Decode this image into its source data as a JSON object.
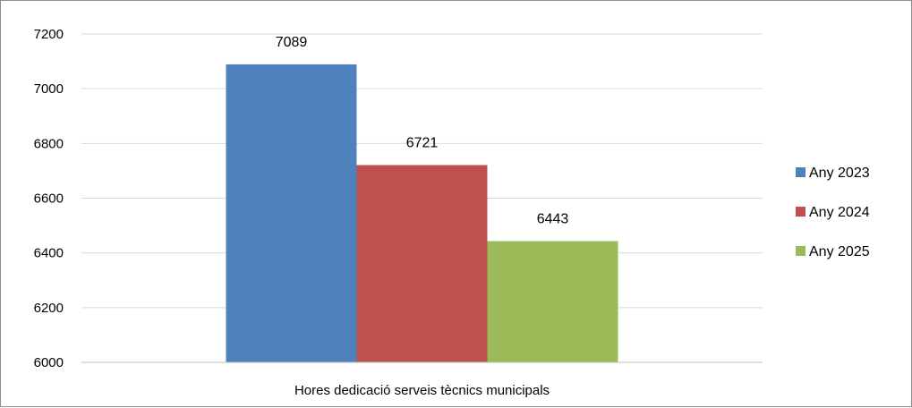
{
  "chart_data": {
    "type": "bar",
    "categories": [
      "Hores dedicació serveis tècnics municipals"
    ],
    "series": [
      {
        "name": "Any 2023",
        "values": [
          7089
        ],
        "color": "#4f81bd"
      },
      {
        "name": "Any 2024",
        "values": [
          6721
        ],
        "color": "#c0504d"
      },
      {
        "name": "Any 2025",
        "values": [
          6443
        ],
        "color": "#9bbb59"
      }
    ],
    "data_labels": [
      "7089",
      "6721",
      "6443"
    ],
    "yticks": [
      6000,
      6200,
      6400,
      6600,
      6800,
      7000,
      7200
    ],
    "ylim": [
      6000,
      7200
    ],
    "grid": true,
    "gridline_color": "#d9d9d9",
    "legend_position": "right"
  }
}
